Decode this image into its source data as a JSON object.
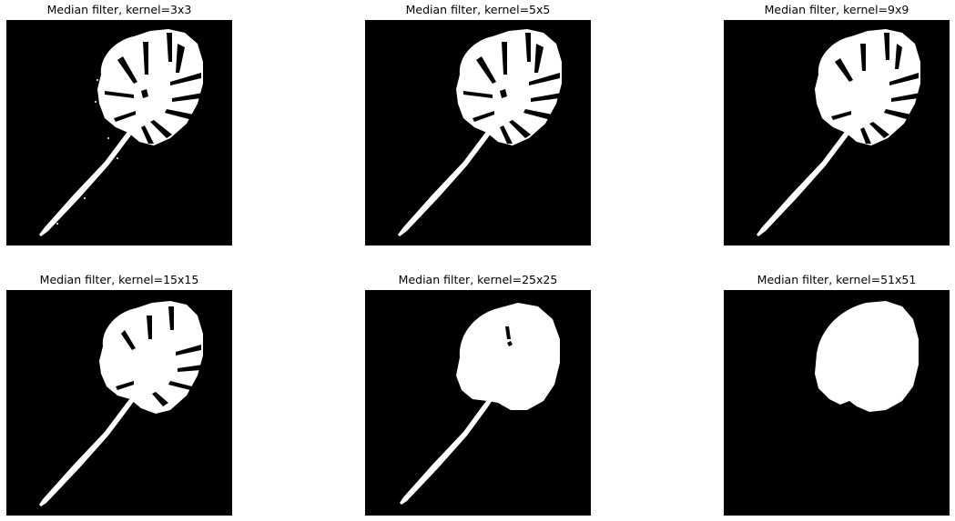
{
  "figure": {
    "panels": [
      {
        "title": "Median filter, kernel=3x3",
        "kernel": 3
      },
      {
        "title": "Median filter, kernel=5x5",
        "kernel": 5
      },
      {
        "title": "Median filter, kernel=9x9",
        "kernel": 9
      },
      {
        "title": "Median filter, kernel=15x15",
        "kernel": 15
      },
      {
        "title": "Median filter, kernel=25x25",
        "kernel": 25
      },
      {
        "title": "Median filter, kernel=51x51",
        "kernel": 51
      }
    ],
    "colors": {
      "background": "#000000",
      "foreground": "#ffffff",
      "page": "#ffffff"
    }
  }
}
